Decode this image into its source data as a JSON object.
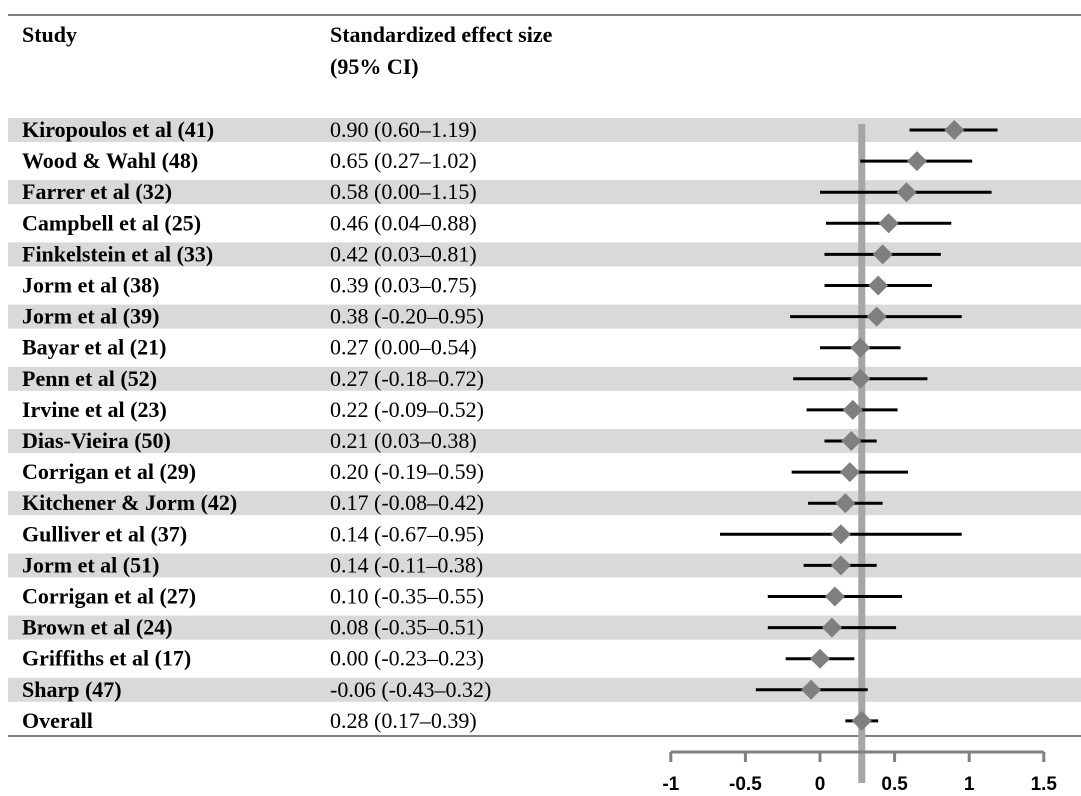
{
  "chart_data": {
    "type": "forest",
    "headers": {
      "study": "Study",
      "effect_line1": "Standardized effect size",
      "effect_line2": "(95% CI)"
    },
    "rows": [
      {
        "study": "Kiropoulos et al (41)",
        "label": "0.90 (0.60–1.19)",
        "est": 0.9,
        "lo": 0.6,
        "hi": 1.19
      },
      {
        "study": "Wood & Wahl (48)",
        "label": "0.65 (0.27–1.02)",
        "est": 0.65,
        "lo": 0.27,
        "hi": 1.02
      },
      {
        "study": "Farrer et al (32)",
        "label": "0.58 (0.00–1.15)",
        "est": 0.58,
        "lo": 0.0,
        "hi": 1.15
      },
      {
        "study": "Campbell et al (25)",
        "label": "0.46 (0.04–0.88)",
        "est": 0.46,
        "lo": 0.04,
        "hi": 0.88
      },
      {
        "study": "Finkelstein et al (33)",
        "label": "0.42 (0.03–0.81)",
        "est": 0.42,
        "lo": 0.03,
        "hi": 0.81
      },
      {
        "study": "Jorm et al (38)",
        "label": "0.39 (0.03–0.75)",
        "est": 0.39,
        "lo": 0.03,
        "hi": 0.75
      },
      {
        "study": "Jorm et al (39)",
        "label": "0.38 (-0.20–0.95)",
        "est": 0.38,
        "lo": -0.2,
        "hi": 0.95
      },
      {
        "study": "Bayar et al (21)",
        "label": "0.27 (0.00–0.54)",
        "est": 0.27,
        "lo": 0.0,
        "hi": 0.54
      },
      {
        "study": "Penn et al (52)",
        "label": "0.27 (-0.18–0.72)",
        "est": 0.27,
        "lo": -0.18,
        "hi": 0.72
      },
      {
        "study": "Irvine et al (23)",
        "label": "0.22 (-0.09–0.52)",
        "est": 0.22,
        "lo": -0.09,
        "hi": 0.52
      },
      {
        "study": "Dias-Vieira (50)",
        "label": "0.21 (0.03–0.38)",
        "est": 0.21,
        "lo": 0.03,
        "hi": 0.38
      },
      {
        "study": "Corrigan et al (29)",
        "label": "0.20 (-0.19–0.59)",
        "est": 0.2,
        "lo": -0.19,
        "hi": 0.59
      },
      {
        "study": "Kitchener & Jorm (42)",
        "label": "0.17 (-0.08–0.42)",
        "est": 0.17,
        "lo": -0.08,
        "hi": 0.42
      },
      {
        "study": "Gulliver et al (37)",
        "label": "0.14 (-0.67–0.95)",
        "est": 0.14,
        "lo": -0.67,
        "hi": 0.95
      },
      {
        "study": "Jorm et al (51)",
        "label": "0.14 (-0.11–0.38)",
        "est": 0.14,
        "lo": -0.11,
        "hi": 0.38
      },
      {
        "study": "Corrigan et al (27)",
        "label": "0.10 (-0.35–0.55)",
        "est": 0.1,
        "lo": -0.35,
        "hi": 0.55
      },
      {
        "study": "Brown et al (24)",
        "label": "0.08 (-0.35–0.51)",
        "est": 0.08,
        "lo": -0.35,
        "hi": 0.51
      },
      {
        "study": "Griffiths et al (17)",
        "label": "0.00 (-0.23–0.23)",
        "est": 0.0,
        "lo": -0.23,
        "hi": 0.23
      },
      {
        "study": "Sharp (47)",
        "label": "-0.06 (-0.43–0.32)",
        "est": -0.06,
        "lo": -0.43,
        "hi": 0.32
      },
      {
        "study": "Overall",
        "label": "0.28 (0.17–0.39)",
        "est": 0.28,
        "lo": 0.17,
        "hi": 0.39
      }
    ],
    "overall_reference": 0.28,
    "xlim": [
      -1,
      1.5
    ],
    "xticks": [
      {
        "value": -1,
        "label": "-1"
      },
      {
        "value": -0.5,
        "label": "-0.5"
      },
      {
        "value": 0,
        "label": "0"
      },
      {
        "value": 0.5,
        "label": "0.5"
      },
      {
        "value": 1,
        "label": "1"
      },
      {
        "value": 1.5,
        "label": "1.5"
      }
    ],
    "colors": {
      "row_stripe": "#d9d9d9",
      "marker": "#7f7f7f",
      "ci_line": "#000000",
      "reference_line": "#a6a6a6",
      "axis": "#808080",
      "rule": "#808080"
    }
  }
}
